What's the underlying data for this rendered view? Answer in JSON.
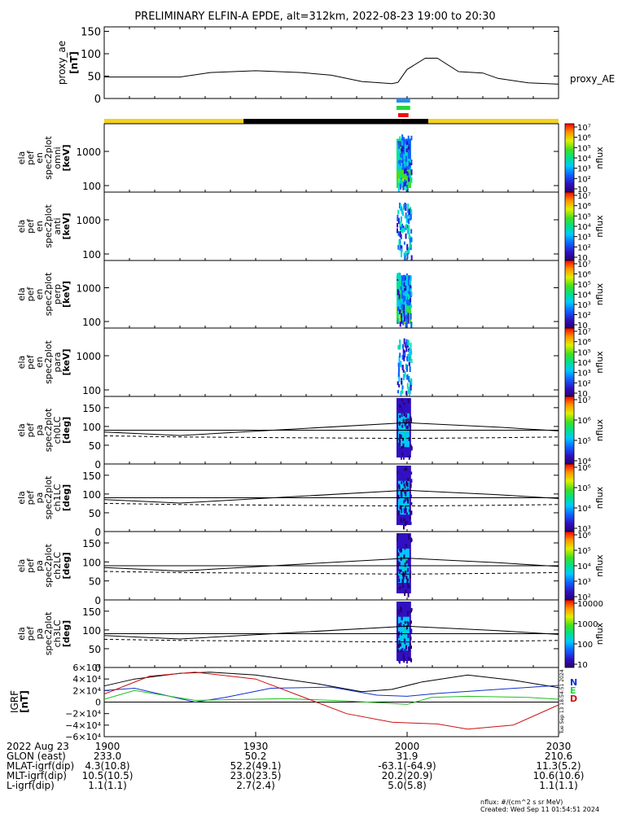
{
  "title": "PRELIMINARY ELFIN-A EPDE, alt=312km, 2022-08-23 19:00 to 20:30",
  "chart_data": [
    {
      "type": "line",
      "panel": "proxy_ae",
      "ylabel_lines": [
        "proxy_ae",
        "[nT]"
      ],
      "series": [
        {
          "name": "proxy_AE",
          "x": [
            19.0,
            19.1,
            19.25,
            19.35,
            19.5,
            19.65,
            19.75,
            19.85,
            19.95,
            19.97,
            20.0,
            20.06,
            20.1,
            20.17,
            20.25,
            20.3,
            20.4,
            20.5
          ],
          "values": [
            48,
            48,
            48,
            58,
            62,
            58,
            52,
            38,
            33,
            36,
            65,
            90,
            90,
            60,
            57,
            45,
            35,
            32
          ]
        }
      ],
      "yticks": [
        "0",
        "50",
        "100",
        "150"
      ],
      "ylim": [
        0,
        160
      ],
      "xlim": [
        19.0,
        20.5
      ]
    },
    {
      "type": "heatmap",
      "panel": "ela_pef_en_spec2plot_omni",
      "ylabel_lines": [
        "ela",
        "pef",
        "en",
        "spec2plot",
        "omni",
        "[keV]"
      ],
      "yticks": [
        "100",
        "1000"
      ],
      "colorbar": {
        "label": "nflux",
        "ticks": [
          "10",
          "10²",
          "10³",
          "10⁴",
          "10⁵",
          "10⁶",
          "10⁷"
        ]
      }
    },
    {
      "type": "heatmap",
      "panel": "ela_pef_en_spec2plot_anti",
      "ylabel_lines": [
        "ela",
        "pef",
        "en",
        "spec2plot",
        "anti",
        "[keV]"
      ],
      "yticks": [
        "100",
        "1000"
      ],
      "colorbar": {
        "label": "nflux",
        "ticks": [
          "10",
          "10²",
          "10³",
          "10⁴",
          "10⁵",
          "10⁶",
          "10⁷"
        ]
      }
    },
    {
      "type": "heatmap",
      "panel": "ela_pef_en_spec2plot_perp",
      "ylabel_lines": [
        "ela",
        "pef",
        "en",
        "spec2plot",
        "perp",
        "[keV]"
      ],
      "yticks": [
        "100",
        "1000"
      ],
      "colorbar": {
        "label": "nflux",
        "ticks": [
          "10",
          "10²",
          "10³",
          "10⁴",
          "10⁵",
          "10⁶",
          "10⁷"
        ]
      }
    },
    {
      "type": "heatmap",
      "panel": "ela_pef_en_spec2plot_para",
      "ylabel_lines": [
        "ela",
        "pef",
        "en",
        "spec2plot",
        "para",
        "[keV]"
      ],
      "yticks": [
        "100",
        "1000"
      ],
      "colorbar": {
        "label": "nflux",
        "ticks": [
          "10",
          "10²",
          "10³",
          "10⁴",
          "10⁵",
          "10⁶",
          "10⁷"
        ]
      }
    },
    {
      "type": "heatmap",
      "panel": "ela_pef_pa_spec2plot_ch0LC",
      "ylabel_lines": [
        "ela",
        "pef",
        "pa",
        "spec2plot",
        "ch0LC",
        "[deg]"
      ],
      "yticks": [
        "0",
        "50",
        "100",
        "150"
      ],
      "colorbar": {
        "label": "nflux",
        "ticks": [
          "10⁴",
          "10⁵",
          "10⁶",
          "10⁷"
        ]
      }
    },
    {
      "type": "heatmap",
      "panel": "ela_pef_pa_spec2plot_ch1LC",
      "ylabel_lines": [
        "ela",
        "pef",
        "pa",
        "spec2plot",
        "ch1LC",
        "[deg]"
      ],
      "yticks": [
        "0",
        "50",
        "100",
        "150"
      ],
      "colorbar": {
        "label": "nflux",
        "ticks": [
          "10³",
          "10⁴",
          "10⁵",
          "10⁶"
        ]
      }
    },
    {
      "type": "heatmap",
      "panel": "ela_pef_pa_spec2plot_ch2LC",
      "ylabel_lines": [
        "ela",
        "pef",
        "pa",
        "spec2plot",
        "ch2LC",
        "[deg]"
      ],
      "yticks": [
        "0",
        "50",
        "100",
        "150"
      ],
      "colorbar": {
        "label": "nflux",
        "ticks": [
          "10²",
          "10³",
          "10⁴",
          "10⁵",
          "10⁶"
        ]
      }
    },
    {
      "type": "heatmap",
      "panel": "ela_pef_pa_spec2plot_ch3LC",
      "ylabel_lines": [
        "ela",
        "pef",
        "pa",
        "spec2plot",
        "ch3LC",
        "[deg]"
      ],
      "yticks": [
        "0",
        "50",
        "100",
        "150"
      ],
      "colorbar": {
        "label": "nflux",
        "ticks": [
          "10",
          "100",
          "1000",
          "10000"
        ]
      }
    },
    {
      "type": "line",
      "panel": "IGRF",
      "ylabel_lines": [
        "IGRF",
        "[nT]"
      ],
      "yticks": [
        "−6×10⁴",
        "−4×10⁴",
        "−2×10⁴",
        "0",
        "2×10⁴",
        "4×10⁴",
        "6×10⁴"
      ],
      "ylim": [
        -60000,
        60000
      ],
      "legend": [
        "N",
        "E",
        "D"
      ],
      "side_label": "Tue Sep 13 18:54:51 2024"
    }
  ],
  "bottom": {
    "x_ticks": [
      "1900",
      "1930",
      "2000",
      "2030"
    ],
    "rows": [
      {
        "label": "2022 Aug 23",
        "values": [
          "1900",
          "1930",
          "2000",
          "2030"
        ]
      },
      {
        "label": "GLON (east)",
        "values": [
          "233.0",
          "50.2",
          "31.9",
          "210.6"
        ]
      },
      {
        "label": "MLAT-igrf(dip)",
        "values": [
          "4.3(10.8)",
          "52.2(49.1)",
          "-63.1(-64.9)",
          "11.3(5.2)"
        ]
      },
      {
        "label": "MLT-igrf(dip)",
        "values": [
          "10.5(10.5)",
          "23.0(23.5)",
          "20.2(20.9)",
          "10.6(10.6)"
        ]
      },
      {
        "label": "L-igrf(dip)",
        "values": [
          "1.1(1.1)",
          "2.7(2.4)",
          "5.0(5.8)",
          "1.1(1.1)"
        ]
      }
    ]
  },
  "footer": {
    "units": "nflux: #/(cm^2 s sr MeV)",
    "created": "Created: Wed Sep 11 01:54:51 2024"
  },
  "colors": {
    "sunlight": "#f2d21f",
    "eclipse": "#000000",
    "bar_blue": "#1e8ff0",
    "bar_green": "#22d63a",
    "bar_red": "#ee1111",
    "igrf_n": "#000000",
    "igrf_e": "#1030d0",
    "igrf_d": "#cc1010",
    "igrf_green": "#20c020"
  }
}
